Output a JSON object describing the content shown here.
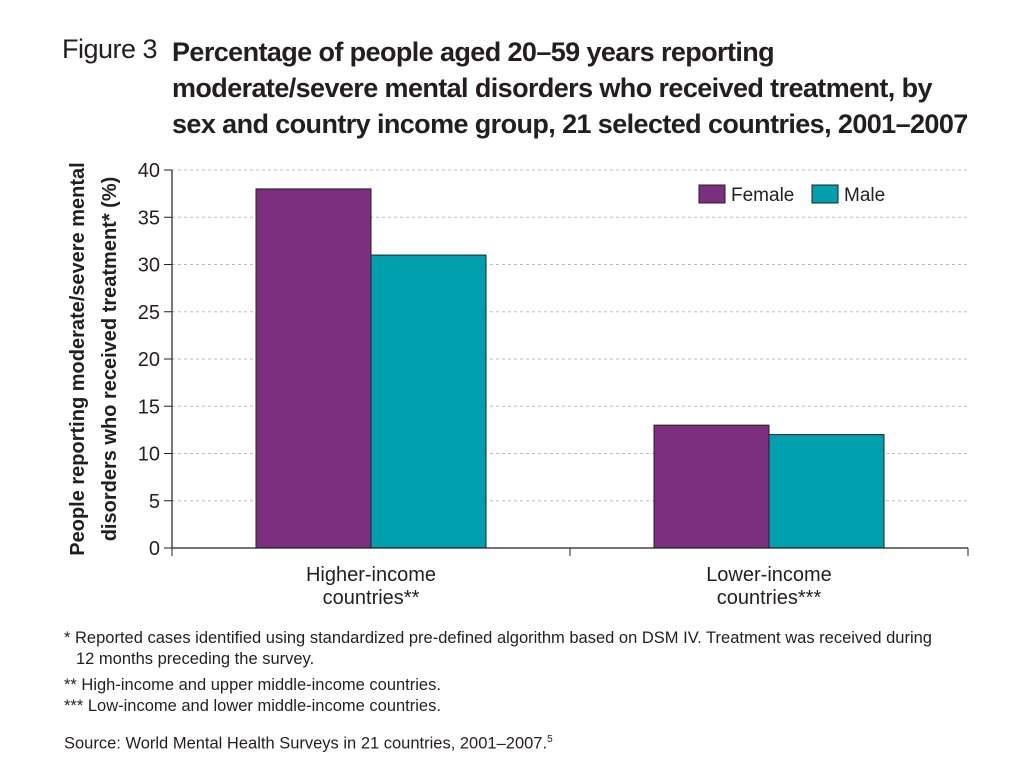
{
  "figure": {
    "label": "Figure 3",
    "title": "Percentage of people aged 20–59 years reporting moderate/severe mental disorders who received treatment, by sex and country income group, 21 selected countries, 2001–2007"
  },
  "chart_data": {
    "type": "bar",
    "categories": [
      "Higher-income countries**",
      "Lower-income countries***"
    ],
    "category_lines": [
      [
        "Higher-income",
        "countries**"
      ],
      [
        "Lower-income",
        "countries***"
      ]
    ],
    "series": [
      {
        "name": "Female",
        "color": "#7b2f7e",
        "values": [
          38,
          13
        ]
      },
      {
        "name": "Male",
        "color": "#00a0ae",
        "values": [
          31,
          12
        ]
      }
    ],
    "ylabel_lines": [
      "People reporting moderate/severe mental",
      "disorders who received treatment* (%)"
    ],
    "xlabel": "",
    "ylim": [
      0,
      40
    ],
    "yticks": [
      0,
      5,
      10,
      15,
      20,
      25,
      30,
      35,
      40
    ],
    "grid": true,
    "legend": "top-right"
  },
  "notes": {
    "footnote1_line1": "* Reported cases identified using standardized pre-defined algorithm based on DSM IV. Treatment was received during",
    "footnote1_line2": "12 months preceding the survey.",
    "footnote2": "** High-income and upper middle-income countries.",
    "footnote3": "*** Low-income and lower middle-income countries.",
    "source": "Source: World Mental Health Surveys in 21 countries, 2001–2007.",
    "source_ref": "5"
  }
}
